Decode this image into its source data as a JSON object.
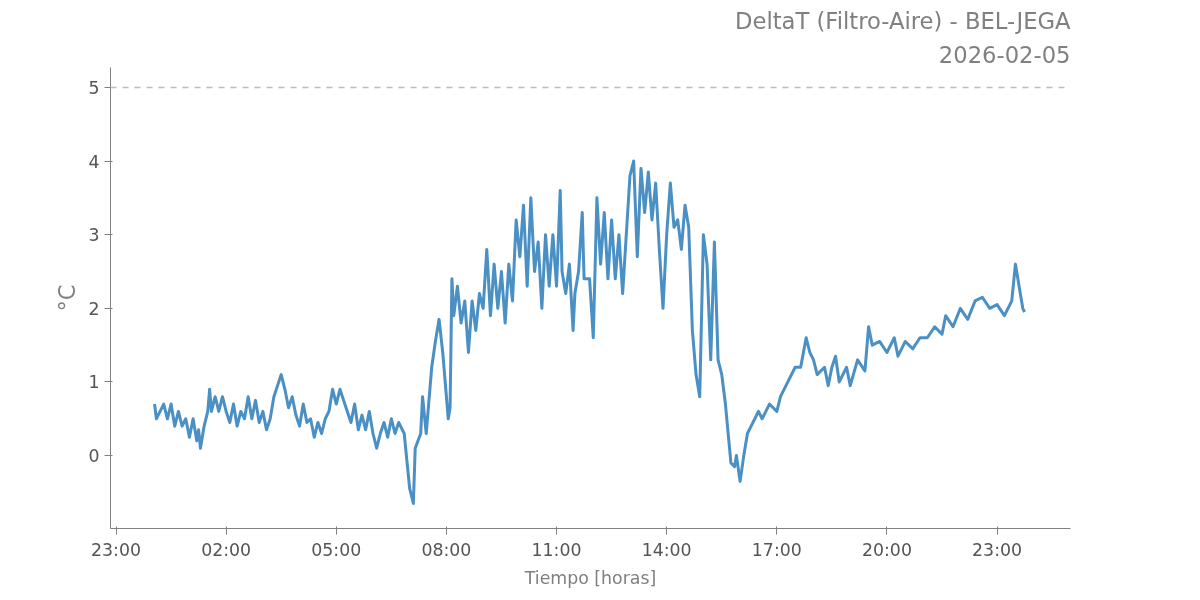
{
  "chart_data": {
    "type": "line",
    "title": "DeltaT (Filtro-Aire) - BEL-JEGA",
    "subtitle": "2026-02-05",
    "xlabel": "Tiempo [horas]",
    "ylabel": "°C",
    "xlim": [
      "2026-02-04T22:51",
      "2026-02-06T01:00"
    ],
    "ylim": [
      -0.99,
      5.27
    ],
    "xticks": [
      {
        "value": "2026-02-04T23:00",
        "label": "23:00"
      },
      {
        "value": "2026-02-05T02:00",
        "label": "02:00"
      },
      {
        "value": "2026-02-05T05:00",
        "label": "05:00"
      },
      {
        "value": "2026-02-05T08:00",
        "label": "08:00"
      },
      {
        "value": "2026-02-05T11:00",
        "label": "11:00"
      },
      {
        "value": "2026-02-05T14:00",
        "label": "14:00"
      },
      {
        "value": "2026-02-05T17:00",
        "label": "17:00"
      },
      {
        "value": "2026-02-05T20:00",
        "label": "20:00"
      },
      {
        "value": "2026-02-05T23:00",
        "label": "23:00"
      }
    ],
    "yticks": [
      0,
      1,
      2,
      3,
      4,
      5
    ],
    "grid": false,
    "line_style": "solid",
    "marker": "none",
    "ref_lines": [
      {
        "axis": "y",
        "value": 5,
        "label": null,
        "color": "#bbbbbb",
        "line_style": "dashed"
      }
    ],
    "series": [
      {
        "color": "#4a90c4",
        "x": [
          "2026-02-05T00:03",
          "2026-02-05T00:06",
          "2026-02-05T00:12",
          "2026-02-05T00:18",
          "2026-02-05T00:24",
          "2026-02-05T00:30",
          "2026-02-05T00:36",
          "2026-02-05T00:42",
          "2026-02-05T00:48",
          "2026-02-05T00:54",
          "2026-02-05T01:00",
          "2026-02-05T01:06",
          "2026-02-05T01:12",
          "2026-02-05T01:15",
          "2026-02-05T01:18",
          "2026-02-05T01:24",
          "2026-02-05T01:30",
          "2026-02-05T01:33",
          "2026-02-05T01:36",
          "2026-02-05T01:42",
          "2026-02-05T01:48",
          "2026-02-05T01:54",
          "2026-02-05T02:00",
          "2026-02-05T02:06",
          "2026-02-05T02:12",
          "2026-02-05T02:18",
          "2026-02-05T02:24",
          "2026-02-05T02:30",
          "2026-02-05T02:36",
          "2026-02-05T02:42",
          "2026-02-05T02:48",
          "2026-02-05T02:54",
          "2026-02-05T03:00",
          "2026-02-05T03:06",
          "2026-02-05T03:12",
          "2026-02-05T03:18",
          "2026-02-05T03:24",
          "2026-02-05T03:30",
          "2026-02-05T03:36",
          "2026-02-05T03:42",
          "2026-02-05T03:48",
          "2026-02-05T03:54",
          "2026-02-05T04:00",
          "2026-02-05T04:06",
          "2026-02-05T04:12",
          "2026-02-05T04:18",
          "2026-02-05T04:24",
          "2026-02-05T04:30",
          "2026-02-05T04:36",
          "2026-02-05T04:42",
          "2026-02-05T04:48",
          "2026-02-05T04:54",
          "2026-02-05T05:00",
          "2026-02-05T05:06",
          "2026-02-05T05:12",
          "2026-02-05T05:18",
          "2026-02-05T05:24",
          "2026-02-05T05:30",
          "2026-02-05T05:36",
          "2026-02-05T05:42",
          "2026-02-05T05:48",
          "2026-02-05T05:54",
          "2026-02-05T06:00",
          "2026-02-05T06:06",
          "2026-02-05T06:12",
          "2026-02-05T06:18",
          "2026-02-05T06:24",
          "2026-02-05T06:30",
          "2026-02-05T06:36",
          "2026-02-05T06:42",
          "2026-02-05T06:51",
          "2026-02-05T06:57",
          "2026-02-05T07:00",
          "2026-02-05T07:06",
          "2026-02-05T07:09",
          "2026-02-05T07:18",
          "2026-02-05T07:21",
          "2026-02-05T07:27",
          "2026-02-05T07:30",
          "2026-02-05T07:36",
          "2026-02-05T07:42",
          "2026-02-05T07:48",
          "2026-02-05T07:54",
          "2026-02-05T08:00",
          "2026-02-05T08:03",
          "2026-02-05T08:06",
          "2026-02-05T08:09",
          "2026-02-05T08:12",
          "2026-02-05T08:18",
          "2026-02-05T08:24",
          "2026-02-05T08:30",
          "2026-02-05T08:36",
          "2026-02-05T08:42",
          "2026-02-05T08:48",
          "2026-02-05T08:54",
          "2026-02-05T09:00",
          "2026-02-05T09:06",
          "2026-02-05T09:12",
          "2026-02-05T09:18",
          "2026-02-05T09:24",
          "2026-02-05T09:30",
          "2026-02-05T09:36",
          "2026-02-05T09:42",
          "2026-02-05T09:48",
          "2026-02-05T09:54",
          "2026-02-05T10:00",
          "2026-02-05T10:06",
          "2026-02-05T10:12",
          "2026-02-05T10:18",
          "2026-02-05T10:24",
          "2026-02-05T10:30",
          "2026-02-05T10:36",
          "2026-02-05T10:42",
          "2026-02-05T10:48",
          "2026-02-05T10:54",
          "2026-02-05T11:00",
          "2026-02-05T11:06",
          "2026-02-05T11:09",
          "2026-02-05T11:15",
          "2026-02-05T11:21",
          "2026-02-05T11:27",
          "2026-02-05T11:30",
          "2026-02-05T11:36",
          "2026-02-05T11:42",
          "2026-02-05T11:45",
          "2026-02-05T11:54",
          "2026-02-05T12:00",
          "2026-02-05T12:06",
          "2026-02-05T12:12",
          "2026-02-05T12:18",
          "2026-02-05T12:24",
          "2026-02-05T12:30",
          "2026-02-05T12:36",
          "2026-02-05T12:42",
          "2026-02-05T12:48",
          "2026-02-05T12:54",
          "2026-02-05T13:00",
          "2026-02-05T13:06",
          "2026-02-05T13:12",
          "2026-02-05T13:18",
          "2026-02-05T13:24",
          "2026-02-05T13:30",
          "2026-02-05T13:36",
          "2026-02-05T13:42",
          "2026-02-05T13:48",
          "2026-02-05T13:54",
          "2026-02-05T14:00",
          "2026-02-05T14:06",
          "2026-02-05T14:12",
          "2026-02-05T14:18",
          "2026-02-05T14:24",
          "2026-02-05T14:30",
          "2026-02-05T14:36",
          "2026-02-05T14:42",
          "2026-02-05T14:48",
          "2026-02-05T14:54",
          "2026-02-05T15:00",
          "2026-02-05T15:06",
          "2026-02-05T15:12",
          "2026-02-05T15:18",
          "2026-02-05T15:24",
          "2026-02-05T15:30",
          "2026-02-05T15:36",
          "2026-02-05T15:45",
          "2026-02-05T15:51",
          "2026-02-05T15:54",
          "2026-02-05T16:00",
          "2026-02-05T16:06",
          "2026-02-05T16:12",
          "2026-02-05T16:18",
          "2026-02-05T16:30",
          "2026-02-05T16:36",
          "2026-02-05T16:48",
          "2026-02-05T17:00",
          "2026-02-05T17:06",
          "2026-02-05T17:18",
          "2026-02-05T17:30",
          "2026-02-05T17:39",
          "2026-02-05T17:48",
          "2026-02-05T17:54",
          "2026-02-05T18:00",
          "2026-02-05T18:06",
          "2026-02-05T18:18",
          "2026-02-05T18:24",
          "2026-02-05T18:30",
          "2026-02-05T18:36",
          "2026-02-05T18:42",
          "2026-02-05T18:54",
          "2026-02-05T19:00",
          "2026-02-05T19:12",
          "2026-02-05T19:24",
          "2026-02-05T19:30",
          "2026-02-05T19:36",
          "2026-02-05T19:48",
          "2026-02-05T20:00",
          "2026-02-05T20:12",
          "2026-02-05T20:18",
          "2026-02-05T20:30",
          "2026-02-05T20:42",
          "2026-02-05T20:54",
          "2026-02-05T21:06",
          "2026-02-05T21:18",
          "2026-02-05T21:30",
          "2026-02-05T21:36",
          "2026-02-05T21:48",
          "2026-02-05T22:00",
          "2026-02-05T22:12",
          "2026-02-05T22:24",
          "2026-02-05T22:36",
          "2026-02-05T22:48",
          "2026-02-05T23:00",
          "2026-02-05T23:12",
          "2026-02-05T23:24",
          "2026-02-05T23:30",
          "2026-02-05T23:36",
          "2026-02-05T23:42",
          "2026-02-05T23:45"
        ],
        "values": [
          0.7,
          0.5,
          0.6,
          0.7,
          0.5,
          0.7,
          0.4,
          0.6,
          0.4,
          0.5,
          0.25,
          0.5,
          0.2,
          0.35,
          0.1,
          0.4,
          0.6,
          0.9,
          0.6,
          0.8,
          0.6,
          0.8,
          0.6,
          0.45,
          0.7,
          0.4,
          0.6,
          0.5,
          0.8,
          0.5,
          0.75,
          0.45,
          0.6,
          0.35,
          0.5,
          0.8,
          0.95,
          1.1,
          0.9,
          0.65,
          0.8,
          0.55,
          0.4,
          0.7,
          0.45,
          0.5,
          0.25,
          0.45,
          0.3,
          0.5,
          0.6,
          0.9,
          0.7,
          0.9,
          0.75,
          0.6,
          0.45,
          0.7,
          0.35,
          0.55,
          0.35,
          0.6,
          0.3,
          0.1,
          0.3,
          0.45,
          0.25,
          0.5,
          0.3,
          0.45,
          0.3,
          -0.2,
          -0.45,
          -0.65,
          0.1,
          0.3,
          0.8,
          0.3,
          0.6,
          1.2,
          1.55,
          1.85,
          1.4,
          0.8,
          0.5,
          0.65,
          2.4,
          1.9,
          2.3,
          1.8,
          2.1,
          1.4,
          2.1,
          1.7,
          2.2,
          2.0,
          2.8,
          1.9,
          2.6,
          2.0,
          2.5,
          1.8,
          2.6,
          2.1,
          3.2,
          2.7,
          3.4,
          2.3,
          3.5,
          2.5,
          2.9,
          2.0,
          3.0,
          2.3,
          3.0,
          2.3,
          3.6,
          2.5,
          2.2,
          2.6,
          1.7,
          2.2,
          2.5,
          3.3,
          2.4,
          2.4,
          1.6,
          3.5,
          2.6,
          3.3,
          2.4,
          3.2,
          2.4,
          3.0,
          2.2,
          3.0,
          3.8,
          4.0,
          2.7,
          3.9,
          3.3,
          3.85,
          3.2,
          3.7,
          2.8,
          2.0,
          3.0,
          3.7,
          3.1,
          3.2,
          2.8,
          3.4,
          3.1,
          1.7,
          1.1,
          0.8,
          3.0,
          2.6,
          1.3,
          2.9,
          1.3,
          1.1,
          0.7,
          -0.1,
          -0.15,
          0.0,
          -0.35,
          0.0,
          0.3,
          0.4,
          0.6,
          0.5,
          0.7,
          0.6,
          0.8,
          1.0,
          1.2,
          1.2,
          1.6,
          1.4,
          1.3,
          1.1,
          1.2,
          0.95,
          1.2,
          1.35,
          1.0,
          1.2,
          0.95,
          1.3,
          1.15,
          1.75,
          1.5,
          1.55,
          1.4,
          1.6,
          1.35,
          1.55,
          1.45,
          1.6,
          1.6,
          1.75,
          1.65,
          1.9,
          1.75,
          2.0,
          1.85,
          2.1,
          2.15,
          2.0,
          2.05,
          1.9,
          2.1,
          2.6,
          2.3,
          2.0,
          1.95
        ]
      }
    ]
  }
}
